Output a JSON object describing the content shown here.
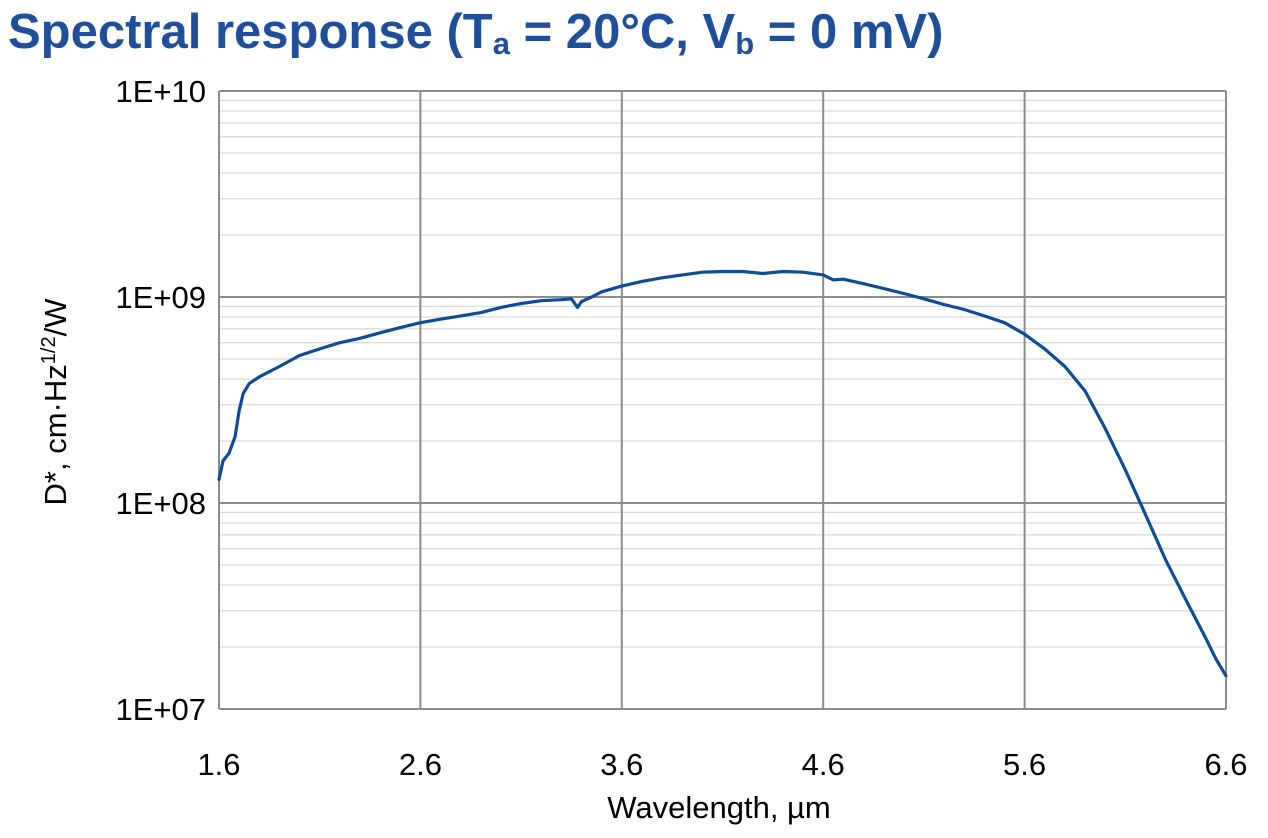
{
  "chart_data": {
    "type": "line",
    "title": {
      "prefix": "Spectral response (T",
      "sub1": "a",
      "mid": " = 20°C, V",
      "sub2": "b",
      "suffix": " = 0 mV)",
      "color": "#1F4E9A"
    },
    "xlabel": "Wavelength, µm",
    "ylabel": {
      "base": "D*, cm·Hz",
      "sup": "1/2",
      "tail": "/W"
    },
    "xlim": [
      1.6,
      6.6
    ],
    "ylim": [
      10000000.0,
      10000000000.0
    ],
    "yscale": "log",
    "x_ticks": [
      "1.6",
      "2.6",
      "3.6",
      "4.6",
      "5.6",
      "6.6"
    ],
    "y_ticks": [
      "1E+07",
      "1E+08",
      "1E+09",
      "1E+10"
    ],
    "grid": true,
    "series": [
      {
        "name": "D*",
        "color": "#0E4C96",
        "x": [
          1.6,
          1.62,
          1.65,
          1.68,
          1.7,
          1.72,
          1.75,
          1.8,
          1.9,
          2.0,
          2.1,
          2.2,
          2.3,
          2.4,
          2.5,
          2.6,
          2.7,
          2.8,
          2.9,
          3.0,
          3.1,
          3.2,
          3.3,
          3.35,
          3.38,
          3.4,
          3.45,
          3.5,
          3.6,
          3.7,
          3.8,
          3.9,
          4.0,
          4.1,
          4.2,
          4.3,
          4.4,
          4.5,
          4.6,
          4.65,
          4.7,
          4.8,
          4.9,
          5.0,
          5.1,
          5.2,
          5.3,
          5.4,
          5.5,
          5.6,
          5.7,
          5.8,
          5.9,
          6.0,
          6.1,
          6.2,
          6.3,
          6.4,
          6.5,
          6.55,
          6.6
        ],
        "y": [
          130000000.0,
          160000000.0,
          175000000.0,
          210000000.0,
          280000000.0,
          340000000.0,
          380000000.0,
          410000000.0,
          460000000.0,
          520000000.0,
          560000000.0,
          600000000.0,
          630000000.0,
          670000000.0,
          710000000.0,
          750000000.0,
          780000000.0,
          810000000.0,
          840000000.0,
          890000000.0,
          930000000.0,
          960000000.0,
          970000000.0,
          980000000.0,
          890000000.0,
          950000000.0,
          1000000000.0,
          1060000000.0,
          1130000000.0,
          1190000000.0,
          1240000000.0,
          1280000000.0,
          1320000000.0,
          1330000000.0,
          1330000000.0,
          1300000000.0,
          1330000000.0,
          1320000000.0,
          1280000000.0,
          1210000000.0,
          1220000000.0,
          1160000000.0,
          1100000000.0,
          1040000000.0,
          980000000.0,
          920000000.0,
          870000000.0,
          810000000.0,
          750000000.0,
          660000000.0,
          560000000.0,
          460000000.0,
          350000000.0,
          230000000.0,
          145000000.0,
          88000000.0,
          53000000.0,
          34000000.0,
          22000000.0,
          17500000.0,
          14500000.0
        ]
      }
    ]
  }
}
